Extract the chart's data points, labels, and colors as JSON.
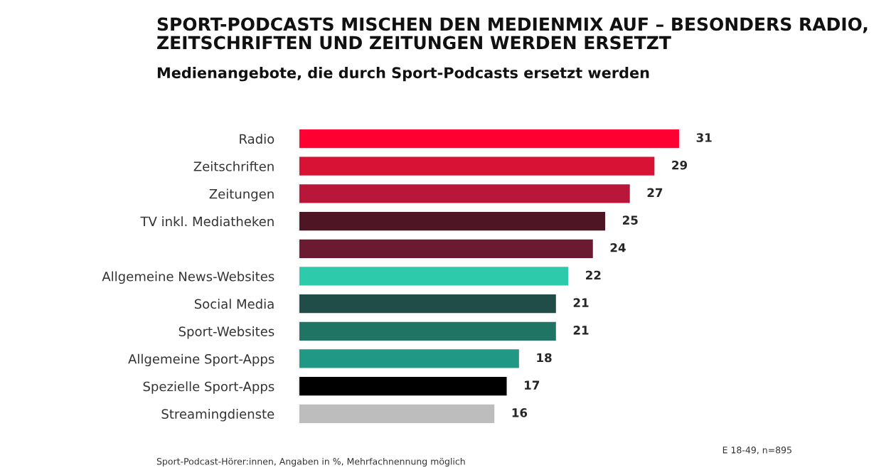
{
  "chart_data": {
    "type": "bar",
    "orientation": "horizontal",
    "title": "SPORT-PODCASTS MISCHEN DEN MEDIENMIX AUF – BESONDERS RADIO, ZEITSCHRIFTEN UND ZEITUNGEN WERDEN ERSETZT",
    "subtitle": "Medienangebote, die durch Sport-Podcasts ersetzt werden",
    "categories": [
      "Radio",
      "Zeitschriften",
      "Zeitungen",
      "TV inkl. Mediatheken",
      null,
      "Allgemeine News-Websites",
      "Social Media",
      "Sport-Websites",
      "Allgemeine Sport-Apps",
      "Spezielle Sport-Apps",
      "Streamingdienste"
    ],
    "values": [
      31,
      29,
      27,
      25,
      24,
      22,
      21,
      21,
      18,
      17,
      16
    ],
    "colors": [
      "#ff0033",
      "#d81234",
      "#b8173a",
      "#4e1524",
      "#6b1a31",
      "#2dcbab",
      "#204d47",
      "#207463",
      "#219886",
      "#000000",
      "#bdbdbd"
    ],
    "xlim": [
      0,
      31
    ],
    "data_labels": true,
    "tick_labels": "y",
    "grid": false,
    "legend": false,
    "annotations": [
      "Sport-Podcast-Hörer:innen, Angaben in %, Mehrfachnennung möglich",
      "E 18-49, n=895"
    ]
  }
}
